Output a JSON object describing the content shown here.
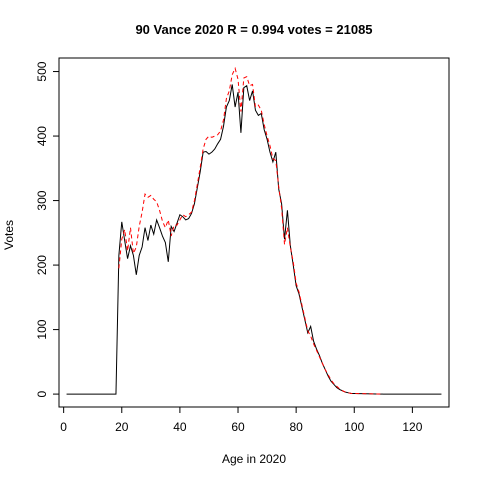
{
  "chart_data": {
    "type": "line",
    "title": "90 Vance 2020 R = 0.994 votes = 21085",
    "xlabel": "Age in 2020",
    "ylabel": "Votes",
    "xlim": [
      -1.6,
      132.6
    ],
    "ylim": [
      -20,
      521
    ],
    "xticks": [
      0,
      20,
      40,
      60,
      80,
      100,
      120
    ],
    "yticks": [
      0,
      100,
      200,
      300,
      400,
      500
    ],
    "xtick_labels": [
      "0",
      "20",
      "40",
      "60",
      "80",
      "100",
      "120"
    ],
    "ytick_labels": [
      "0",
      "100",
      "200",
      "300",
      "400",
      "500"
    ],
    "grid": false,
    "series": [
      {
        "color": "#000000",
        "style": "solid",
        "points": [
          [
            1,
            0
          ],
          [
            18,
            0
          ],
          [
            19,
            215
          ],
          [
            20,
            267
          ],
          [
            21,
            238
          ],
          [
            22,
            210
          ],
          [
            23,
            230
          ],
          [
            24,
            215
          ],
          [
            25,
            185
          ],
          [
            26,
            215
          ],
          [
            27,
            228
          ],
          [
            28,
            258
          ],
          [
            29,
            238
          ],
          [
            30,
            262
          ],
          [
            31,
            248
          ],
          [
            32,
            270
          ],
          [
            33,
            258
          ],
          [
            34,
            245
          ],
          [
            35,
            235
          ],
          [
            36,
            205
          ],
          [
            37,
            260
          ],
          [
            38,
            252
          ],
          [
            39,
            265
          ],
          [
            40,
            278
          ],
          [
            41,
            275
          ],
          [
            42,
            270
          ],
          [
            43,
            272
          ],
          [
            44,
            280
          ],
          [
            45,
            295
          ],
          [
            46,
            320
          ],
          [
            47,
            345
          ],
          [
            48,
            375
          ],
          [
            49,
            376
          ],
          [
            50,
            372
          ],
          [
            51,
            375
          ],
          [
            52,
            380
          ],
          [
            53,
            388
          ],
          [
            54,
            395
          ],
          [
            55,
            415
          ],
          [
            56,
            445
          ],
          [
            57,
            455
          ],
          [
            58,
            480
          ],
          [
            59,
            445
          ],
          [
            60,
            468
          ],
          [
            61,
            405
          ],
          [
            62,
            475
          ],
          [
            63,
            478
          ],
          [
            64,
            455
          ],
          [
            65,
            470
          ],
          [
            66,
            440
          ],
          [
            67,
            432
          ],
          [
            68,
            435
          ],
          [
            69,
            410
          ],
          [
            70,
            395
          ],
          [
            71,
            375
          ],
          [
            72,
            360
          ],
          [
            73,
            375
          ],
          [
            74,
            318
          ],
          [
            75,
            295
          ],
          [
            76,
            240
          ],
          [
            77,
            285
          ],
          [
            78,
            230
          ],
          [
            79,
            200
          ],
          [
            80,
            168
          ],
          [
            81,
            155
          ],
          [
            82,
            135
          ],
          [
            83,
            115
          ],
          [
            84,
            95
          ],
          [
            85,
            105
          ],
          [
            86,
            82
          ],
          [
            87,
            70
          ],
          [
            88,
            60
          ],
          [
            89,
            48
          ],
          [
            90,
            38
          ],
          [
            91,
            28
          ],
          [
            92,
            20
          ],
          [
            93,
            15
          ],
          [
            94,
            10
          ],
          [
            95,
            7
          ],
          [
            96,
            5
          ],
          [
            97,
            3
          ],
          [
            98,
            2
          ],
          [
            99,
            1
          ],
          [
            100,
            1
          ],
          [
            110,
            0
          ],
          [
            130,
            0
          ]
        ]
      },
      {
        "color": "#ff0000",
        "style": "dashed",
        "points": [
          [
            19,
            195
          ],
          [
            20,
            240
          ],
          [
            21,
            255
          ],
          [
            22,
            222
          ],
          [
            23,
            258
          ],
          [
            24,
            218
          ],
          [
            25,
            228
          ],
          [
            26,
            260
          ],
          [
            27,
            282
          ],
          [
            28,
            310
          ],
          [
            29,
            305
          ],
          [
            30,
            308
          ],
          [
            31,
            302
          ],
          [
            32,
            298
          ],
          [
            33,
            285
          ],
          [
            34,
            268
          ],
          [
            35,
            258
          ],
          [
            36,
            270
          ],
          [
            37,
            245
          ],
          [
            38,
            262
          ],
          [
            39,
            262
          ],
          [
            40,
            270
          ],
          [
            41,
            278
          ],
          [
            42,
            275
          ],
          [
            43,
            278
          ],
          [
            44,
            282
          ],
          [
            45,
            300
          ],
          [
            46,
            325
          ],
          [
            47,
            352
          ],
          [
            48,
            380
          ],
          [
            49,
            395
          ],
          [
            50,
            400
          ],
          [
            51,
            398
          ],
          [
            52,
            400
          ],
          [
            53,
            402
          ],
          [
            54,
            408
          ],
          [
            55,
            425
          ],
          [
            56,
            458
          ],
          [
            57,
            470
          ],
          [
            58,
            495
          ],
          [
            59,
            505
          ],
          [
            60,
            488
          ],
          [
            61,
            438
          ],
          [
            62,
            490
          ],
          [
            63,
            492
          ],
          [
            64,
            478
          ],
          [
            65,
            480
          ],
          [
            66,
            445
          ],
          [
            67,
            448
          ],
          [
            68,
            440
          ],
          [
            69,
            418
          ],
          [
            70,
            400
          ],
          [
            71,
            385
          ],
          [
            72,
            365
          ],
          [
            73,
            362
          ],
          [
            74,
            322
          ],
          [
            75,
            288
          ],
          [
            76,
            232
          ],
          [
            77,
            258
          ],
          [
            78,
            228
          ],
          [
            79,
            205
          ],
          [
            80,
            172
          ],
          [
            81,
            158
          ],
          [
            82,
            138
          ],
          [
            83,
            118
          ],
          [
            84,
            98
          ],
          [
            85,
            90
          ],
          [
            86,
            78
          ],
          [
            87,
            68
          ],
          [
            88,
            58
          ],
          [
            89,
            48
          ],
          [
            90,
            38
          ],
          [
            91,
            30
          ],
          [
            92,
            22
          ],
          [
            93,
            16
          ],
          [
            94,
            12
          ],
          [
            95,
            8
          ],
          [
            96,
            5
          ],
          [
            97,
            3
          ],
          [
            98,
            2
          ],
          [
            99,
            1
          ],
          [
            100,
            1
          ],
          [
            110,
            0
          ]
        ]
      }
    ]
  }
}
